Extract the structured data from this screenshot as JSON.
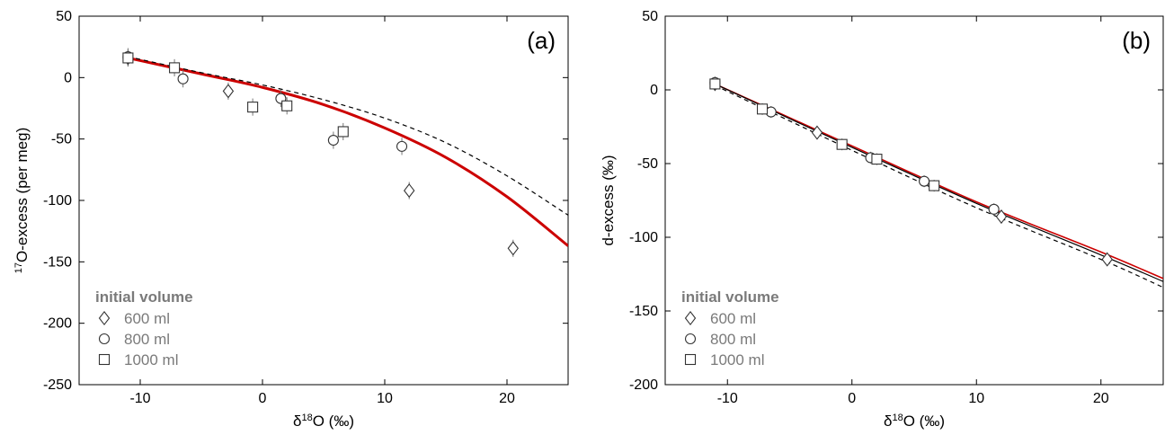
{
  "chart_data": [
    {
      "type": "scatter",
      "panel_label": "(a)",
      "xlabel": {
        "pre": "δ",
        "sup": "18",
        "post": "O (‰)"
      },
      "ylabel": {
        "pre": "",
        "sup": "17",
        "post": "O-excess (per meg)"
      },
      "xlim": [
        -15,
        25
      ],
      "ylim": [
        -250,
        50
      ],
      "xticks": [
        -10,
        0,
        10,
        20
      ],
      "yticks": [
        -250,
        -200,
        -150,
        -100,
        -50,
        0,
        50
      ],
      "xtick_labels": [
        "-10",
        "0",
        "10",
        "20"
      ],
      "ytick_labels": [
        "-250",
        "-200",
        "-150",
        "-100",
        "-50",
        "0",
        "50"
      ],
      "grid": false,
      "legend": {
        "title": "initial volume",
        "position": "bottom-left",
        "entries": [
          {
            "label": "600 ml",
            "marker": "diamond"
          },
          {
            "label": "800 ml",
            "marker": "circle"
          },
          {
            "label": "1000 ml",
            "marker": "square"
          }
        ]
      },
      "series": [
        {
          "marker": "diamond",
          "points": [
            [
              -11.0,
              16
            ],
            [
              -2.8,
              -11
            ],
            [
              12.0,
              -92
            ],
            [
              20.5,
              -139
            ]
          ]
        },
        {
          "marker": "circle",
          "points": [
            [
              -11.0,
              17
            ],
            [
              -6.5,
              -1
            ],
            [
              1.5,
              -17
            ],
            [
              5.8,
              -51
            ],
            [
              11.4,
              -56
            ]
          ]
        },
        {
          "marker": "square",
          "points": [
            [
              -11.0,
              16
            ],
            [
              -7.2,
              8
            ],
            [
              -0.8,
              -24
            ],
            [
              2.0,
              -23
            ],
            [
              6.6,
              -44
            ]
          ]
        }
      ],
      "error_bar": 7,
      "curves": [
        {
          "style": "solid",
          "color": "#cc0000",
          "points": [
            [
              -11,
              16
            ],
            [
              -5,
              3
            ],
            [
              0,
              -8
            ],
            [
              5,
              -22
            ],
            [
              10,
              -41
            ],
            [
              15,
              -65
            ],
            [
              20,
              -97
            ],
            [
              25,
              -137
            ]
          ]
        },
        {
          "style": "dashed",
          "color": "#000000",
          "points": [
            [
              -11,
              17
            ],
            [
              -5,
              4
            ],
            [
              0,
              -6
            ],
            [
              5,
              -18
            ],
            [
              10,
              -33
            ],
            [
              15,
              -53
            ],
            [
              20,
              -80
            ],
            [
              25,
              -112
            ]
          ]
        }
      ]
    },
    {
      "type": "scatter",
      "panel_label": "(b)",
      "xlabel": {
        "pre": "δ",
        "sup": "18",
        "post": "O (‰)"
      },
      "ylabel": {
        "pre": "d-excess (‰)",
        "sup": "",
        "post": ""
      },
      "xlim": [
        -15,
        25
      ],
      "ylim": [
        -200,
        50
      ],
      "xticks": [
        -10,
        0,
        10,
        20
      ],
      "yticks": [
        -200,
        -150,
        -100,
        -50,
        0,
        50
      ],
      "xtick_labels": [
        "-10",
        "0",
        "10",
        "20"
      ],
      "ytick_labels": [
        "-200",
        "-150",
        "-100",
        "-50",
        "0",
        "50"
      ],
      "grid": false,
      "legend": {
        "title": "initial volume",
        "position": "bottom-left",
        "entries": [
          {
            "label": "600 ml",
            "marker": "diamond"
          },
          {
            "label": "800 ml",
            "marker": "circle"
          },
          {
            "label": "1000 ml",
            "marker": "square"
          }
        ]
      },
      "series": [
        {
          "marker": "diamond",
          "points": [
            [
              -11.0,
              4
            ],
            [
              -2.8,
              -29
            ],
            [
              12.0,
              -86
            ],
            [
              20.5,
              -115
            ]
          ]
        },
        {
          "marker": "circle",
          "points": [
            [
              -11.0,
              5
            ],
            [
              -6.5,
              -15
            ],
            [
              1.5,
              -46
            ],
            [
              5.8,
              -62
            ],
            [
              11.4,
              -81
            ]
          ]
        },
        {
          "marker": "square",
          "points": [
            [
              -11.0,
              4
            ],
            [
              -7.2,
              -13
            ],
            [
              -0.8,
              -37
            ],
            [
              2.0,
              -47
            ],
            [
              6.6,
              -65
            ]
          ]
        }
      ],
      "error_bar": 4,
      "curves": [
        {
          "style": "solid",
          "color": "#cc0000",
          "points": [
            [
              -11,
              4
            ],
            [
              0,
              -38
            ],
            [
              10,
              -76
            ],
            [
              20,
              -110
            ],
            [
              25,
              -128
            ]
          ]
        },
        {
          "style": "solid",
          "color": "#000000",
          "points": [
            [
              -11,
              4
            ],
            [
              0,
              -39
            ],
            [
              10,
              -77
            ],
            [
              20,
              -112
            ],
            [
              25,
              -130
            ]
          ]
        },
        {
          "style": "dashed",
          "color": "#000000",
          "points": [
            [
              -11,
              3
            ],
            [
              0,
              -41
            ],
            [
              10,
              -80
            ],
            [
              20,
              -115
            ],
            [
              25,
              -134
            ]
          ]
        }
      ]
    }
  ]
}
